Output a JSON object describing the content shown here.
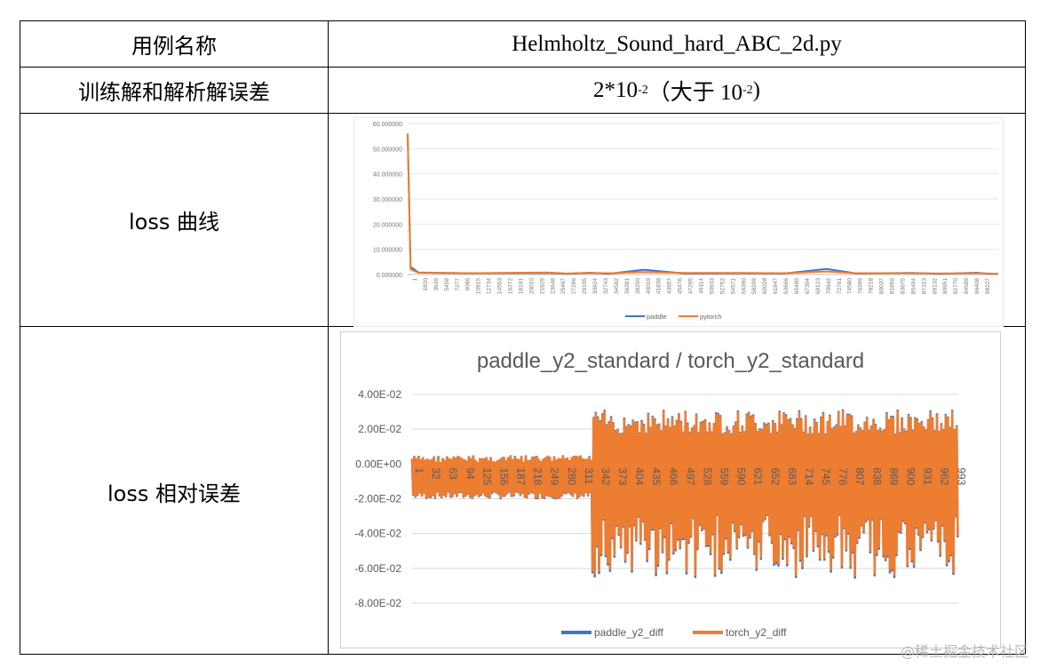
{
  "table": {
    "rows": [
      {
        "label": "用例名称",
        "value": "Helmholtz_Sound_hard_ABC_2d.py"
      },
      {
        "label": "训练解和解析解误差",
        "value_main": "2*10",
        "value_exp": "-2",
        "value_mid": "（大于 10",
        "value_exp2": "-2",
        "value_end": ")"
      },
      {
        "label": "loss 曲线"
      },
      {
        "label": "loss 相对误差"
      }
    ]
  },
  "watermark": "@稀土掘金技术社区",
  "chart_data": [
    {
      "type": "line",
      "title": "",
      "xlabel": "",
      "ylabel": "",
      "ylim": [
        0,
        60
      ],
      "y_ticks": [
        "0.000000",
        "10.000000",
        "20.000000",
        "30.000000",
        "40.000000",
        "50.000000",
        "60.000000"
      ],
      "x_ticks": [
        "1",
        "1820",
        "3639",
        "5458",
        "7277",
        "9096",
        "10915",
        "12734",
        "14553",
        "16372",
        "18191",
        "20010",
        "21829",
        "23648",
        "25467",
        "27286",
        "29105",
        "30924",
        "32743",
        "34562",
        "36381",
        "38200",
        "40019",
        "41838",
        "43657",
        "45476",
        "47295",
        "49114",
        "50933",
        "52752",
        "54571",
        "56390",
        "58209",
        "60028",
        "61847",
        "63666",
        "65485",
        "67304",
        "69123",
        "70942",
        "72761",
        "74580",
        "76399",
        "78218",
        "80037",
        "81856",
        "83675",
        "85494",
        "87313",
        "89132",
        "90951",
        "92770",
        "94589",
        "96408",
        "98227"
      ],
      "legend_position": "bottom",
      "grid": true,
      "series": [
        {
          "name": "paddle",
          "color": "#4472c4",
          "x": [
            1,
            500,
            1820,
            10000,
            23648,
            27000,
            30924,
            34000,
            40019,
            47000,
            56390,
            63666,
            70942,
            76000,
            85494,
            90000,
            96408,
            98227,
            100000
          ],
          "y": [
            56,
            3,
            0.8,
            0.5,
            0.6,
            0.3,
            0.7,
            0.3,
            1.9,
            0.4,
            0.5,
            0.4,
            2.2,
            0.4,
            0.6,
            0.2,
            0.7,
            0.3,
            0.2
          ]
        },
        {
          "name": "pytorch",
          "color": "#ed7d31",
          "x": [
            1,
            500,
            1820,
            10000,
            23648,
            27000,
            30924,
            34000,
            40019,
            47000,
            56390,
            63666,
            70942,
            76000,
            85494,
            90000,
            96408,
            98227,
            100000
          ],
          "y": [
            56,
            2,
            0.7,
            0.5,
            0.8,
            0.4,
            0.6,
            0.5,
            1.0,
            0.6,
            0.6,
            0.5,
            1.2,
            0.5,
            0.5,
            0.4,
            0.5,
            0.4,
            0.3
          ]
        }
      ]
    },
    {
      "type": "line",
      "title": "paddle_y2_standard / torch_y2_standard",
      "xlabel": "",
      "ylabel": "",
      "ylim": [
        -0.08,
        0.04
      ],
      "y_ticks": [
        "-8.00E-02",
        "-6.00E-02",
        "-4.00E-02",
        "-2.00E-02",
        "0.00E+00",
        "2.00E-02",
        "4.00E-02"
      ],
      "x_ticks": [
        "1",
        "32",
        "63",
        "94",
        "125",
        "156",
        "187",
        "218",
        "249",
        "280",
        "311",
        "342",
        "373",
        "404",
        "435",
        "466",
        "497",
        "528",
        "559",
        "590",
        "621",
        "652",
        "683",
        "714",
        "745",
        "776",
        "807",
        "838",
        "869",
        "900",
        "931",
        "962",
        "993"
      ],
      "x_range": [
        1,
        1000
      ],
      "legend_position": "bottom",
      "grid": true,
      "series": [
        {
          "name": "paddle_y2_diff",
          "color": "#4472c4"
        },
        {
          "name": "torch_y2_diff",
          "color": "#ed7d31"
        }
      ],
      "envelope": {
        "segment_1": {
          "x_range": [
            1,
            330
          ],
          "min": -0.02,
          "max": 0.005
        },
        "segment_2": {
          "x_range": [
            330,
            1000
          ],
          "min": -0.065,
          "max": 0.031
        }
      }
    }
  ]
}
